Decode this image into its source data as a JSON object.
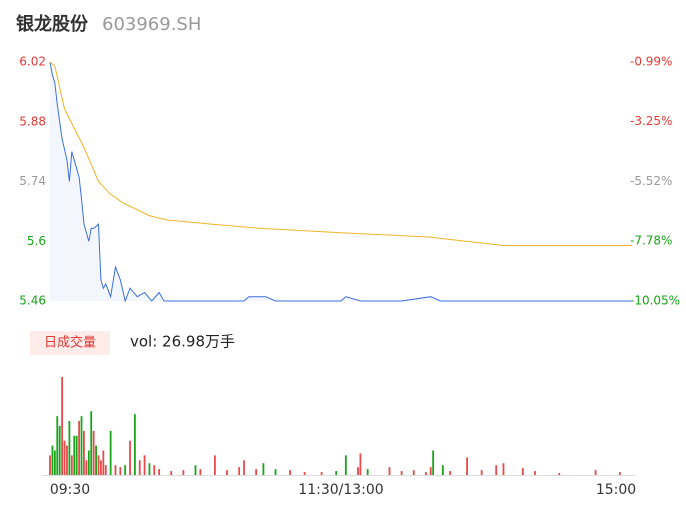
{
  "header": {
    "name": "银龙股份",
    "code": "603969.SH"
  },
  "chart_data": [
    {
      "type": "line",
      "xlim": [
        0,
        240
      ],
      "ylim": [
        5.46,
        6.02
      ],
      "yticks": [
        5.46,
        5.6,
        5.74,
        5.88,
        6.02
      ],
      "ytick_colors": [
        "#1aa31a",
        "#1aa31a",
        "#999999",
        "#e53935",
        "#e53935"
      ],
      "y2lim": [
        -10.05,
        -0.99
      ],
      "y2ticks": [
        {
          "value": -10.05,
          "label": "-10.05%"
        },
        {
          "value": -7.78,
          "label": "-7.78%"
        },
        {
          "value": -5.52,
          "label": "-5.52%"
        },
        {
          "value": -3.25,
          "label": "-3.25%"
        },
        {
          "value": -0.99,
          "label": "-0.99%"
        }
      ],
      "series": [
        {
          "color": "#3b6fe0",
          "area": true,
          "x": [
            0,
            1,
            2,
            3,
            5,
            7,
            8,
            9,
            11,
            12,
            13,
            14,
            16,
            17,
            18,
            20,
            21,
            22,
            23,
            25,
            27,
            29,
            31,
            33,
            36,
            39,
            42,
            45,
            47,
            49,
            55,
            80,
            82,
            89,
            93,
            99,
            120,
            122,
            128,
            145,
            157,
            161,
            178,
            182,
            240
          ],
          "values": [
            6.02,
            5.99,
            5.97,
            5.92,
            5.84,
            5.79,
            5.74,
            5.81,
            5.77,
            5.75,
            5.7,
            5.64,
            5.6,
            5.63,
            5.63,
            5.64,
            5.51,
            5.49,
            5.5,
            5.47,
            5.54,
            5.51,
            5.46,
            5.49,
            5.47,
            5.48,
            5.46,
            5.48,
            5.46,
            5.46,
            5.46,
            5.46,
            5.47,
            5.47,
            5.46,
            5.46,
            5.46,
            5.47,
            5.46,
            5.46,
            5.47,
            5.46,
            5.46,
            5.46,
            5.46
          ]
        },
        {
          "color": "#f0b429",
          "area": false,
          "x": [
            0,
            2,
            6,
            14,
            20,
            25,
            30,
            41,
            48,
            67,
            87,
            120,
            156,
            187,
            240
          ],
          "values": [
            6.02,
            6.01,
            5.91,
            5.82,
            5.74,
            5.71,
            5.69,
            5.66,
            5.65,
            5.64,
            5.63,
            5.62,
            5.61,
            5.59,
            5.59
          ]
        }
      ]
    },
    {
      "type": "bar",
      "tab": "日成交量",
      "volume_label": "vol: 26.98万手",
      "xlim": [
        0,
        240
      ],
      "ylim": [
        0,
        1.05
      ],
      "xticks": [
        {
          "value": 0,
          "label": "09:30"
        },
        {
          "value": 120,
          "label": "11:30/13:00"
        },
        {
          "value": 240,
          "label": "15:00"
        }
      ],
      "x": [
        0,
        1,
        2,
        3,
        4,
        5,
        6,
        7,
        8,
        9,
        10,
        11,
        12,
        13,
        14,
        15,
        16,
        17,
        18,
        19,
        20,
        21,
        22,
        23,
        25,
        27,
        29,
        31,
        33,
        35,
        37,
        39,
        41,
        43,
        45,
        50,
        55,
        60,
        62,
        68,
        73,
        78,
        80,
        85,
        88,
        93,
        99,
        105,
        112,
        118,
        122,
        127,
        128,
        131,
        140,
        145,
        150,
        155,
        157,
        158,
        162,
        165,
        172,
        178,
        184,
        187,
        195,
        200,
        210,
        225,
        235
      ],
      "values": [
        0.2,
        0.3,
        0.25,
        0.6,
        0.5,
        1.0,
        0.35,
        0.3,
        0.55,
        0.2,
        0.4,
        0.4,
        0.55,
        0.6,
        0.45,
        0.15,
        0.25,
        0.65,
        0.45,
        0.3,
        0.2,
        0.15,
        0.25,
        0.1,
        0.45,
        0.1,
        0.08,
        0.1,
        0.35,
        0.62,
        0.15,
        0.2,
        0.12,
        0.1,
        0.06,
        0.04,
        0.05,
        0.1,
        0.06,
        0.2,
        0.05,
        0.08,
        0.15,
        0.06,
        0.12,
        0.06,
        0.05,
        0.03,
        0.03,
        0.04,
        0.2,
        0.08,
        0.22,
        0.06,
        0.08,
        0.04,
        0.05,
        0.03,
        0.08,
        0.25,
        0.1,
        0.04,
        0.18,
        0.05,
        0.1,
        0.12,
        0.07,
        0.04,
        0.02,
        0.05,
        0.03
      ],
      "colors": [
        "r",
        "g",
        "g",
        "g",
        "g",
        "r",
        "r",
        "r",
        "g",
        "r",
        "g",
        "g",
        "r",
        "g",
        "r",
        "r",
        "g",
        "g",
        "r",
        "g",
        "r",
        "r",
        "r",
        "r",
        "g",
        "r",
        "r",
        "g",
        "r",
        "g",
        "r",
        "r",
        "g",
        "r",
        "r",
        "r",
        "r",
        "g",
        "r",
        "r",
        "r",
        "r",
        "r",
        "r",
        "g",
        "g",
        "r",
        "r",
        "r",
        "g",
        "g",
        "r",
        "r",
        "g",
        "r",
        "r",
        "r",
        "r",
        "r",
        "g",
        "g",
        "r",
        "r",
        "r",
        "r",
        "r",
        "r",
        "r",
        "r",
        "r",
        "r"
      ],
      "color_map": {
        "r": "#e84a4a",
        "g": "#1aa31a"
      }
    }
  ]
}
